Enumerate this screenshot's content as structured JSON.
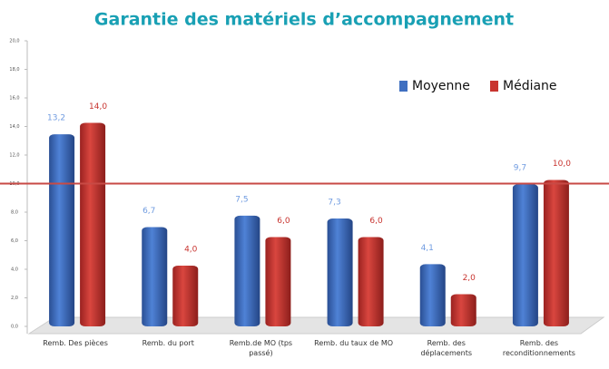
{
  "chart_data": {
    "type": "bar",
    "title": "Garantie des matériels d’accompagnement",
    "categories": [
      "Remb. Des pièces",
      "Remb. du port",
      "Remb.de MO (tps passé)",
      "Remb. du taux de MO",
      "Remb. des déplacements",
      "Remb. des reconditionnements"
    ],
    "series": [
      {
        "name": "Moyenne",
        "color": "#3f6fc0",
        "label_color": "#6f9be0",
        "values": [
          13.2,
          6.7,
          7.5,
          7.3,
          4.1,
          9.7
        ],
        "value_labels": [
          "13,2",
          "6,7",
          "7,5",
          "7,3",
          "4,1",
          "9,7"
        ]
      },
      {
        "name": "Médiane",
        "color": "#c8342f",
        "label_color": "#c8342f",
        "values": [
          14.0,
          4.0,
          6.0,
          6.0,
          2.0,
          10.0
        ],
        "value_labels": [
          "14,0",
          "4,0",
          "6,0",
          "6,0",
          "2,0",
          "10,0"
        ]
      }
    ],
    "ylim": [
      0,
      20
    ],
    "yticks": [
      {
        "value": 0,
        "label": "0,0"
      },
      {
        "value": 2,
        "label": "2,0"
      },
      {
        "value": 4,
        "label": "4,0"
      },
      {
        "value": 6,
        "label": "6,0"
      },
      {
        "value": 8,
        "label": "8,0"
      },
      {
        "value": 10,
        "label": "10,0"
      },
      {
        "value": 12,
        "label": "12,0"
      },
      {
        "value": 14,
        "label": "14,0"
      },
      {
        "value": 16,
        "label": "16,0"
      },
      {
        "value": 18,
        "label": "18,0"
      },
      {
        "value": 20,
        "label": "20,0"
      }
    ],
    "hline": 10,
    "hline_color": "#c84a45",
    "grid": false,
    "legend": "top-right"
  }
}
